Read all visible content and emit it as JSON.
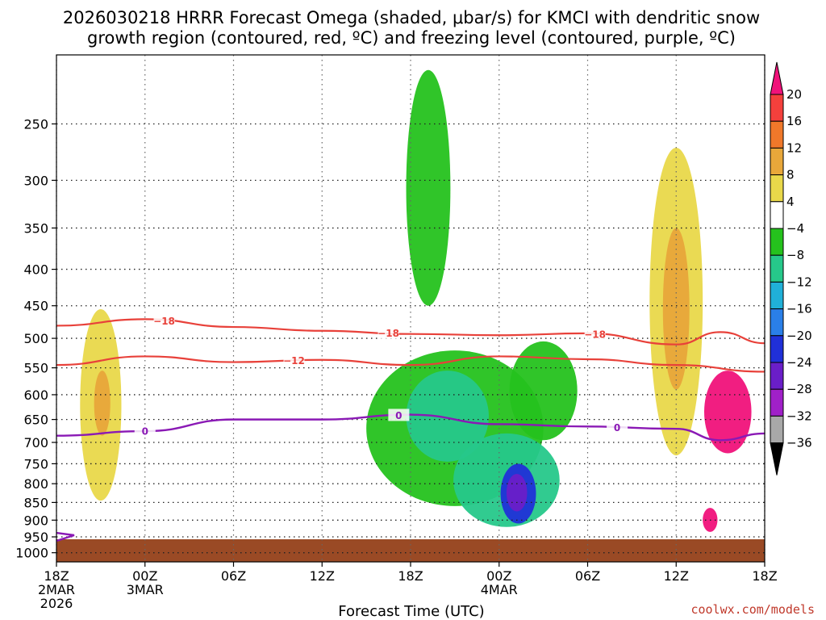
{
  "title_line1": "2026030218 HRRR Forecast Omega (shaded, μbar/s) for KMCI with dendritic snow",
  "title_line2": "growth region (contoured, red, ºC) and freezing level (contoured, purple, ºC)",
  "xlabel": "Forecast Time (UTC)",
  "credit": "coolwx.com/models",
  "colors": {
    "isotherm": "#e8413a",
    "freezing_level": "#8a19b5",
    "ground": "#9a4a25"
  },
  "chart_data": {
    "type": "heatmap",
    "x_ticks": [
      {
        "hours": 0,
        "label": "18Z",
        "sub": [
          "2MAR",
          "2026"
        ]
      },
      {
        "hours": 6,
        "label": "00Z",
        "sub": [
          "3MAR"
        ]
      },
      {
        "hours": 12,
        "label": "06Z",
        "sub": []
      },
      {
        "hours": 18,
        "label": "12Z",
        "sub": []
      },
      {
        "hours": 24,
        "label": "18Z",
        "sub": []
      },
      {
        "hours": 30,
        "label": "00Z",
        "sub": [
          "4MAR"
        ]
      },
      {
        "hours": 36,
        "label": "06Z",
        "sub": []
      },
      {
        "hours": 42,
        "label": "12Z",
        "sub": []
      },
      {
        "hours": 48,
        "label": "18Z",
        "sub": []
      }
    ],
    "y_ticks": [
      250,
      300,
      350,
      400,
      450,
      500,
      550,
      600,
      650,
      700,
      750,
      800,
      850,
      900,
      950,
      1000
    ],
    "y_range_hpa": [
      200,
      1030
    ],
    "colorbar": {
      "labels": [
        "20",
        "16",
        "12",
        "8",
        "4",
        "−4",
        "−8",
        "−12",
        "−16",
        "−20",
        "−24",
        "−28",
        "−32",
        "−36"
      ],
      "colors": [
        "#f0127a",
        "#f4403c",
        "#f0782a",
        "#e8a73a",
        "#e9d84a",
        "#ffffff",
        "#25c21d",
        "#26c88a",
        "#20b0d8",
        "#2a7fe8",
        "#2030d8",
        "#6a1ec8",
        "#a020c8",
        "#a8a8a8",
        "#000000"
      ]
    },
    "omega_regions": [
      {
        "name": "mid-columns",
        "color": "#25c21d",
        "cx": 33,
        "cy": 600,
        "rx": 2.3,
        "ry": 95
      },
      {
        "name": "green-east-upper",
        "color": "#25c21d",
        "cx": 25.2,
        "cy": 330,
        "rx": 1.5,
        "ry": 120
      },
      {
        "name": "green-low-core",
        "color": "#25c21d",
        "cx": 27,
        "cy": 690,
        "rx": 6,
        "ry": 170
      },
      {
        "name": "teal-low",
        "color": "#26c88a",
        "cx": 26.5,
        "cy": 650,
        "rx": 2.8,
        "ry": 95
      },
      {
        "name": "teal-overnight",
        "color": "#26c88a",
        "cx": 30.5,
        "cy": 800,
        "rx": 3.6,
        "ry": 120
      },
      {
        "name": "blue-core",
        "color": "#2030d8",
        "cx": 31.3,
        "cy": 830,
        "rx": 1.2,
        "ry": 80
      },
      {
        "name": "purple-core",
        "color": "#6a1ec8",
        "cx": 31.2,
        "cy": 825,
        "rx": 0.7,
        "ry": 50
      },
      {
        "name": "yellow-west",
        "color": "#e9d84a",
        "cx": 3,
        "cy": 650,
        "rx": 1.4,
        "ry": 195
      },
      {
        "name": "orange-west",
        "color": "#e8a73a",
        "cx": 3.1,
        "cy": 620,
        "rx": 0.55,
        "ry": 65
      },
      {
        "name": "yellow-east",
        "color": "#e9d84a",
        "cx": 42,
        "cy": 500,
        "rx": 1.8,
        "ry": 230
      },
      {
        "name": "orange-east",
        "color": "#e8a73a",
        "cx": 42,
        "cy": 470,
        "rx": 0.9,
        "ry": 120
      },
      {
        "name": "pink-core",
        "color": "#f0127a",
        "cx": 45.5,
        "cy": 640,
        "rx": 1.6,
        "ry": 85
      },
      {
        "name": "pink-low",
        "color": "#f0127a",
        "cx": 44.3,
        "cy": 900,
        "rx": 0.5,
        "ry": 35
      }
    ],
    "isotherms": [
      {
        "label": "−18",
        "points_hours_hpa": [
          [
            0,
            480
          ],
          [
            6,
            470
          ],
          [
            12,
            482
          ],
          [
            18,
            488
          ],
          [
            24,
            493
          ],
          [
            30,
            495
          ],
          [
            36,
            492
          ],
          [
            42,
            510
          ],
          [
            45,
            490
          ],
          [
            48,
            508
          ]
        ]
      },
      {
        "label": "−12",
        "points_hours_hpa": [
          [
            0,
            545
          ],
          [
            6,
            530
          ],
          [
            12,
            540
          ],
          [
            18,
            536
          ],
          [
            24,
            545
          ],
          [
            30,
            530
          ],
          [
            36,
            535
          ],
          [
            42,
            545
          ],
          [
            48,
            557
          ]
        ]
      }
    ],
    "freezing_level": {
      "label": "0",
      "points_hours_hpa": [
        [
          0,
          685
        ],
        [
          6,
          675
        ],
        [
          12,
          650
        ],
        [
          18,
          650
        ],
        [
          24,
          640
        ],
        [
          30,
          660
        ],
        [
          36,
          665
        ],
        [
          42,
          670
        ],
        [
          45,
          695
        ],
        [
          48,
          680
        ]
      ]
    }
  }
}
